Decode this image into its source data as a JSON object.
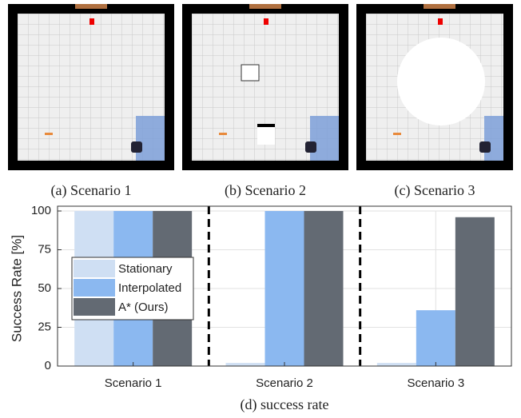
{
  "chart_data": {
    "type": "bar",
    "panel_captions": [
      "(a) Scenario 1",
      "(b) Scenario 2",
      "(c) Scenario 3"
    ],
    "caption": "(d) success rate",
    "ylabel": "Success Rate [%]",
    "categories": [
      "Scenario 1",
      "Scenario 2",
      "Scenario 3"
    ],
    "series": [
      {
        "name": "Stationary",
        "color": "#cfdff3",
        "values": [
          100,
          2,
          2
        ]
      },
      {
        "name": "Interpolated",
        "color": "#8bb8f0",
        "values": [
          100,
          100,
          36
        ]
      },
      {
        "name": "A* (Ours)",
        "color": "#636a73",
        "values": [
          100,
          100,
          96
        ]
      }
    ],
    "ylim": [
      0,
      100
    ],
    "yticks": [
      0,
      25,
      50,
      75,
      100
    ],
    "grid": true,
    "legend": "left"
  }
}
